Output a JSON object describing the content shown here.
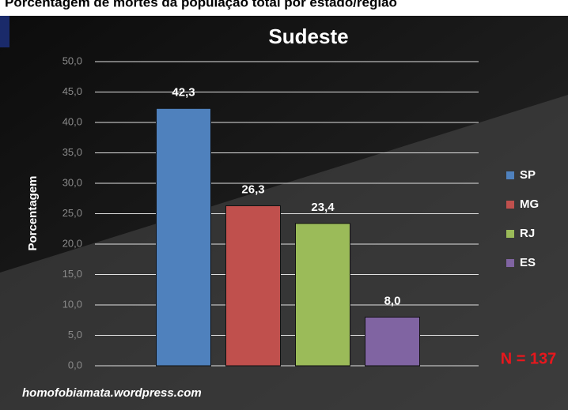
{
  "header": "Porcentagem de mortes da população total por estado/região",
  "chart_data": {
    "type": "bar",
    "title": "Sudeste",
    "ylabel": "Porcentagem",
    "categories": [
      "SP",
      "MG",
      "RJ",
      "ES"
    ],
    "values": [
      42.3,
      26.3,
      23.4,
      8.0
    ],
    "value_labels": [
      "42,3",
      "26,3",
      "23,4",
      "8,0"
    ],
    "colors": [
      "#4f81bd",
      "#c0504d",
      "#9bbb59",
      "#8064a2"
    ],
    "ylim": [
      0,
      50
    ],
    "yticks": [
      {
        "value": 0,
        "label": "0,0"
      },
      {
        "value": 5,
        "label": "5,0"
      },
      {
        "value": 10,
        "label": "10,0"
      },
      {
        "value": 15,
        "label": "15,0"
      },
      {
        "value": 20,
        "label": "20,0"
      },
      {
        "value": 25,
        "label": "25,0"
      },
      {
        "value": 30,
        "label": "30,0"
      },
      {
        "value": 35,
        "label": "35,0"
      },
      {
        "value": 40,
        "label": "40,0"
      },
      {
        "value": 45,
        "label": "45,0"
      },
      {
        "value": 50,
        "label": "50,0"
      }
    ],
    "grid": true,
    "legend": "right",
    "annotation": "N = 137",
    "footer": "homofobiamata.wordpress.com"
  }
}
